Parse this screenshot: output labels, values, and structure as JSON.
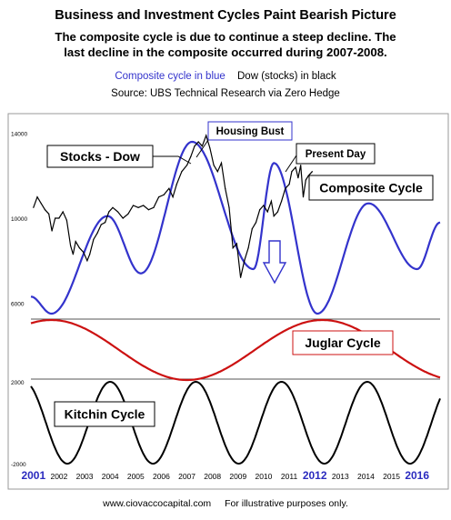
{
  "title": "Business and Investment Cycles Paint Bearish Picture",
  "subtitle_line1": "The composite cycle is due to continue a steep decline.  The",
  "subtitle_line2": "last decline in the composite occurred during 2007-2008.",
  "legend": {
    "blue": "Composite cycle in blue",
    "black": "Dow (stocks) in black"
  },
  "source": "Source:  UBS Technical Research via Zero Hedge",
  "footer": {
    "site": "www.ciovaccocapital.com",
    "note": "For illustrative purposes only."
  },
  "colors": {
    "composite": "#3333cc",
    "juglar": "#cc1111",
    "dow": "#000000",
    "kitchin": "#000000",
    "year_blue": "#2b2bbf",
    "arrow": "#3333cc"
  },
  "chart_data": {
    "type": "line",
    "x_range": [
      2000.9,
      2016.9
    ],
    "x_ticks": [
      {
        "label": "2001",
        "x": 2001,
        "style": "major"
      },
      {
        "label": "2002",
        "x": 2002,
        "style": "minor"
      },
      {
        "label": "2003",
        "x": 2003,
        "style": "minor"
      },
      {
        "label": "2004",
        "x": 2004,
        "style": "minor"
      },
      {
        "label": "2005",
        "x": 2005,
        "style": "minor"
      },
      {
        "label": "2006",
        "x": 2006,
        "style": "minor"
      },
      {
        "label": "2007",
        "x": 2007,
        "style": "minor"
      },
      {
        "label": "2008",
        "x": 2008,
        "style": "minor"
      },
      {
        "label": "2009",
        "x": 2009,
        "style": "minor"
      },
      {
        "label": "2010",
        "x": 2010,
        "style": "minor"
      },
      {
        "label": "2011",
        "x": 2011,
        "style": "minor"
      },
      {
        "label": "2012",
        "x": 2012,
        "style": "major"
      },
      {
        "label": "2013",
        "x": 2013,
        "style": "minor"
      },
      {
        "label": "2014",
        "x": 2014,
        "style": "minor"
      },
      {
        "label": "2015",
        "x": 2015,
        "style": "minor"
      },
      {
        "label": "2016",
        "x": 2016,
        "style": "major"
      }
    ],
    "y_ticks_top": [
      {
        "label": "14000",
        "y": 14000
      },
      {
        "label": "10000",
        "y": 10000
      },
      {
        "label": "6000",
        "y": 6000
      }
    ],
    "y_range_top": [
      5200,
      14800
    ],
    "y_ticks_bottom": [
      {
        "label": "2000",
        "y": 2000
      },
      {
        "label": "-2000",
        "y": -2000
      }
    ],
    "series": [
      {
        "name": "Dow",
        "x": [
          2001.0,
          2001.15,
          2001.3,
          2001.45,
          2001.6,
          2001.72,
          2001.85,
          2002.0,
          2002.15,
          2002.3,
          2002.45,
          2002.55,
          2002.65,
          2002.8,
          2002.95,
          2003.1,
          2003.2,
          2003.35,
          2003.5,
          2003.65,
          2003.8,
          2003.95,
          2004.1,
          2004.3,
          2004.5,
          2004.7,
          2004.9,
          2005.1,
          2005.3,
          2005.5,
          2005.7,
          2005.9,
          2006.1,
          2006.3,
          2006.45,
          2006.6,
          2006.8,
          2007.0,
          2007.15,
          2007.3,
          2007.45,
          2007.6,
          2007.75,
          2007.9,
          2008.05,
          2008.2,
          2008.35,
          2008.5,
          2008.65,
          2008.8,
          2008.95,
          2009.1,
          2009.25,
          2009.4,
          2009.55,
          2009.7,
          2009.85,
          2010.0,
          2010.15,
          2010.3,
          2010.4,
          2010.55,
          2010.7,
          2010.85,
          2011.0,
          2011.1,
          2011.25,
          2011.35,
          2011.45,
          2011.55,
          2011.65,
          2011.75,
          2011.9
        ],
        "values": [
          10500,
          11000,
          10700,
          10400,
          10200,
          9400,
          10000,
          10000,
          10300,
          9900,
          8700,
          8300,
          8900,
          8600,
          8400,
          8000,
          8300,
          9000,
          9300,
          9700,
          9800,
          10300,
          10500,
          10300,
          10000,
          10200,
          10600,
          10500,
          10600,
          10400,
          10500,
          11000,
          11100,
          11400,
          11000,
          11600,
          12200,
          12500,
          12900,
          13400,
          13600,
          13400,
          13900,
          13300,
          12500,
          12200,
          12600,
          11400,
          10500,
          8600,
          8800,
          7200,
          8000,
          8600,
          9500,
          9800,
          10400,
          10600,
          10300,
          10800,
          10100,
          10300,
          10800,
          11400,
          11600,
          12200,
          12400,
          11900,
          12500,
          11000,
          11800,
          12000,
          12200
        ]
      }
    ],
    "annotations": [
      "Stocks - Dow",
      "Housing Bust",
      "Present Day",
      "Composite Cycle",
      "Juglar Cycle",
      "Kitchin Cycle"
    ]
  }
}
